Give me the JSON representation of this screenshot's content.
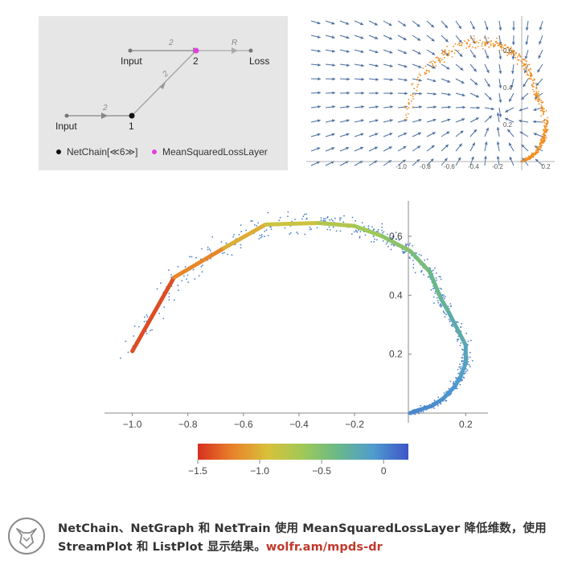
{
  "netgraph": {
    "nodes": [
      {
        "id": "input_top",
        "label": "Input"
      },
      {
        "id": "node2",
        "label": "2"
      },
      {
        "id": "loss",
        "label": "Loss"
      },
      {
        "id": "input_bottom",
        "label": "Input"
      },
      {
        "id": "node1",
        "label": "1"
      }
    ],
    "edge_labels": {
      "top_left": "2",
      "top_right": "R",
      "diagonal": "2",
      "bottom": "2"
    },
    "legend": [
      {
        "label": "NetChain[≪6≫]",
        "color": "#111111"
      },
      {
        "label": "MeanSquaredLossLayer",
        "color": "#e040e0"
      }
    ]
  },
  "streamplot": {
    "x_ticks": [
      "-1.0",
      "-0.8",
      "-0.6",
      "-0.4",
      "-0.2",
      "0.2"
    ],
    "y_ticks": [
      "0.6",
      "0.4",
      "0.2"
    ],
    "arrow_color": "#4a6ea0",
    "point_color": "#f08a1a"
  },
  "chart_data": {
    "type": "scatter",
    "x_ticks": [
      "−1.0",
      "−0.8",
      "−0.6",
      "−0.4",
      "−0.2",
      "0.2"
    ],
    "y_ticks": [
      "0.2",
      "0.4",
      "0.6"
    ],
    "xlim": [
      -1.1,
      0.28
    ],
    "ylim": [
      0,
      0.72
    ],
    "points_color": "#4a7fc8",
    "curve": {
      "x": [
        -1.0,
        -0.85,
        -0.67,
        -0.52,
        -0.33,
        -0.2,
        -0.1,
        0.0,
        0.07,
        0.11,
        0.14,
        0.2,
        0.2,
        0.18,
        0.16,
        0.12,
        0.08,
        0.03,
        0.0
      ],
      "y": [
        0.21,
        0.46,
        0.56,
        0.64,
        0.645,
        0.635,
        0.6,
        0.55,
        0.48,
        0.39,
        0.34,
        0.23,
        0.17,
        0.12,
        0.09,
        0.05,
        0.025,
        0.01,
        0.0
      ],
      "t": [
        -1.5,
        -1.3,
        -1.1,
        -0.95,
        -0.8,
        -0.7,
        -0.6,
        -0.5,
        -0.4,
        -0.33,
        -0.28,
        -0.2,
        -0.14,
        -0.1,
        -0.07,
        -0.04,
        -0.02,
        -0.01,
        0.0
      ]
    },
    "colorbar": {
      "ticks": [
        "−1.5",
        "−1.0",
        "−0.5",
        "0"
      ],
      "range": [
        -1.5,
        0.2
      ],
      "colors": [
        "#d7301f",
        "#e8832a",
        "#d8c13a",
        "#9fc957",
        "#69b88a",
        "#4f9ccf",
        "#3d55c6"
      ]
    }
  },
  "footer": {
    "caption_line1": "NetChain、NetGraph 和 NetTrain 使用 MeanSquaredLossLayer 降低维数，使用",
    "caption_line2": "StreamPlot 和 ListPlot 显示结果。",
    "link_text": "wolfr.am/mpds-dr",
    "logo_color": "#8a8a8a",
    "link_color": "#c0392b"
  }
}
